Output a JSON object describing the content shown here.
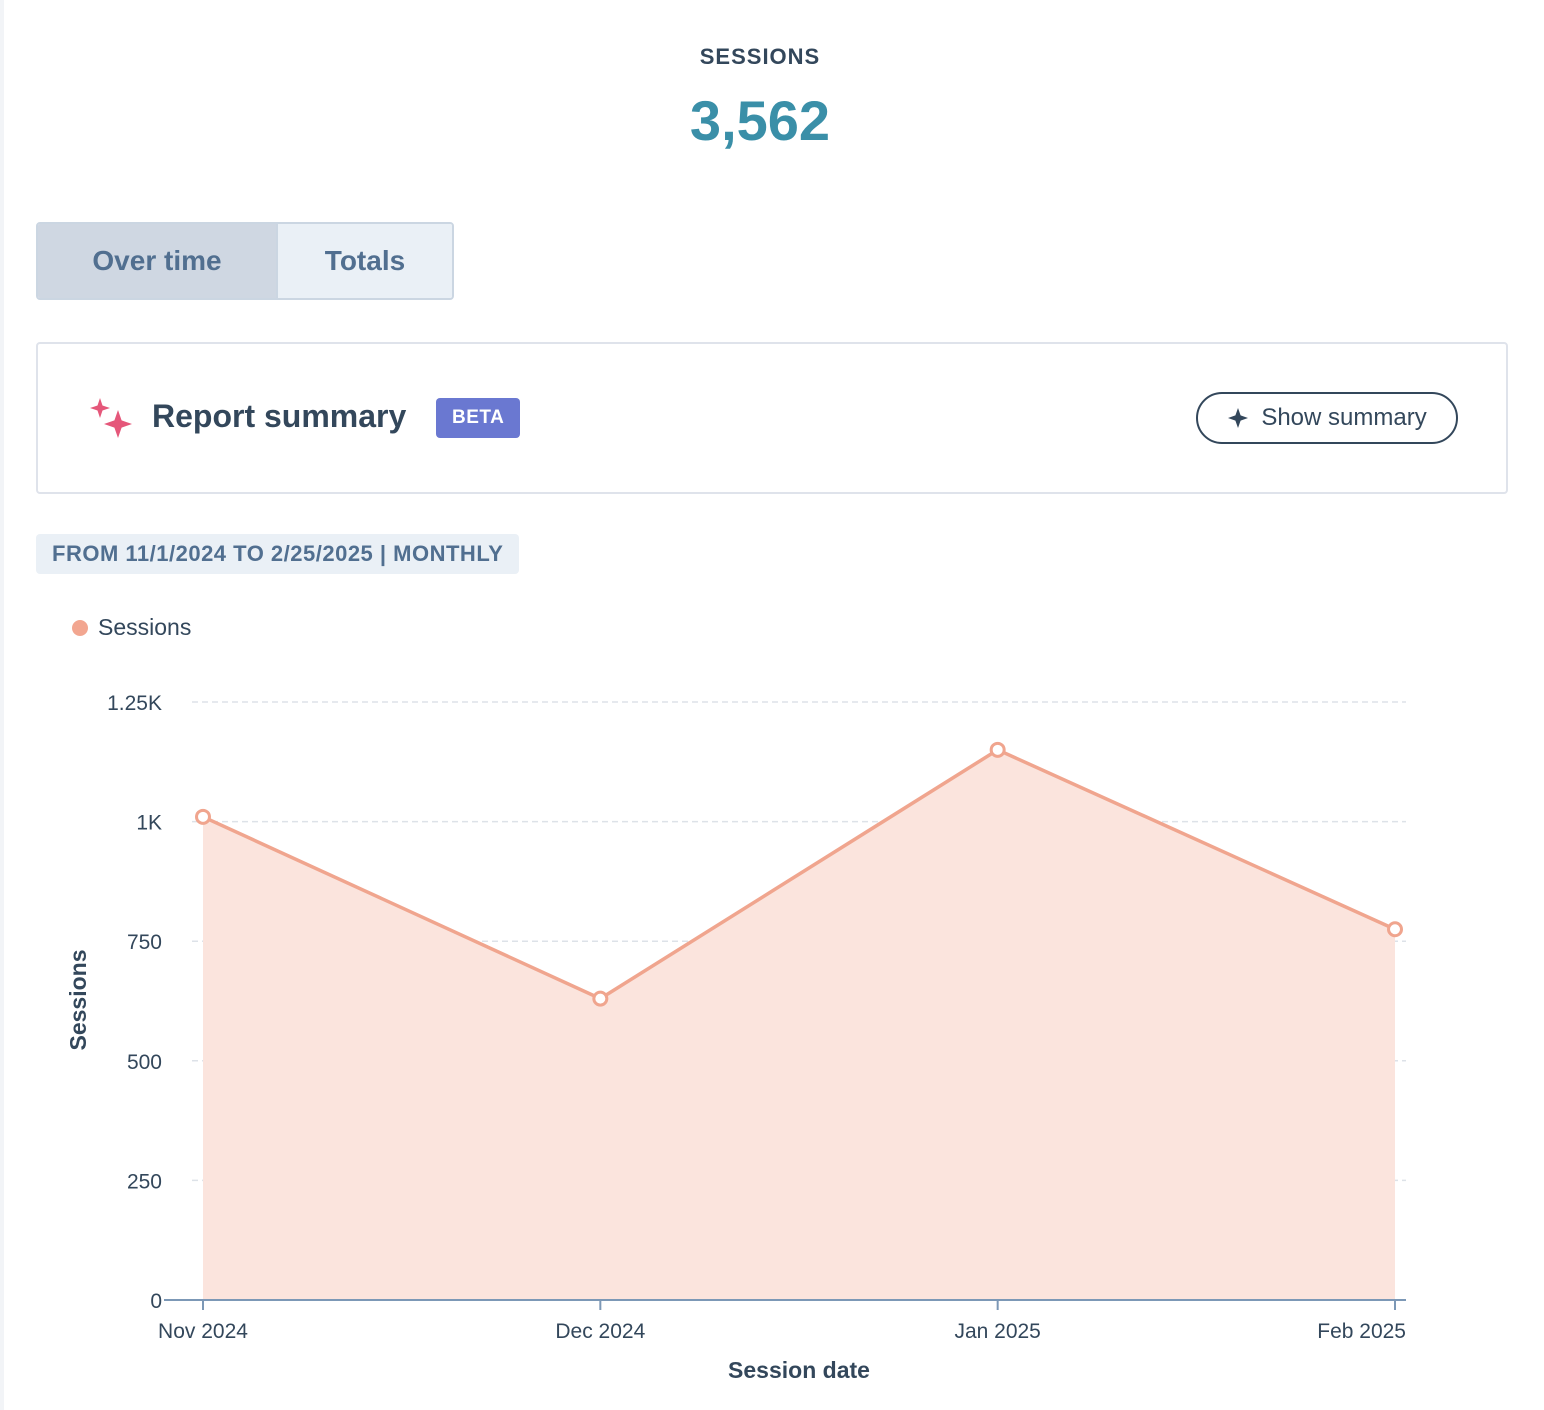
{
  "kpi": {
    "label": "SESSIONS",
    "value": "3,562"
  },
  "view_toggle": {
    "options": [
      "Over time",
      "Totals"
    ],
    "selected": "Over time"
  },
  "report_summary": {
    "title": "Report summary",
    "badge": "BETA",
    "button_label": "Show summary"
  },
  "date_range": "FROM 11/1/2024 TO 2/25/2025 | MONTHLY",
  "colors": {
    "accent": "#3a8fa8",
    "series_line": "#f0a58e",
    "series_fill": "#fbe4dd",
    "badge": "#6a78d1",
    "sparkle": "#e5577a"
  },
  "icons": {
    "summary": "sparkle-icon",
    "button": "star-icon"
  },
  "chart_data": {
    "type": "area",
    "categories": [
      "Nov 2024",
      "Dec 2024",
      "Jan 2025",
      "Feb 2025"
    ],
    "series": [
      {
        "name": "Sessions",
        "values": [
          1010,
          630,
          1150,
          775
        ]
      }
    ],
    "xlabel": "Session date",
    "ylabel": "Sessions",
    "ylim": [
      0,
      1250
    ],
    "yticks": [
      0,
      250,
      500,
      750,
      1000,
      1250
    ],
    "ytick_labels": [
      "0",
      "250",
      "500",
      "750",
      "1K",
      "1.25K"
    ],
    "grid": true,
    "legend": "top-left"
  }
}
